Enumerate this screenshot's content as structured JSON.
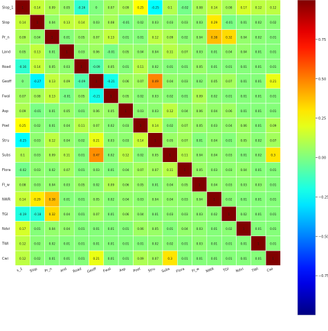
{
  "chart_data": {
    "type": "heatmap",
    "title": "",
    "xlabel": "",
    "ylabel": "",
    "row_labels": [
      "Slop_1",
      "Slop",
      "Pr_n",
      "Land",
      "Road",
      "Geoff",
      "Fwal",
      "Asp",
      "Poel",
      "Stru",
      "Subs",
      "Flora",
      "Fl_w",
      "NWR",
      "TGI",
      "Ndvi",
      "TWI",
      "Cwi"
    ],
    "col_labels": [
      "s_1",
      "Slop",
      "Pr_n",
      "and",
      "Road",
      "Geoff",
      "Fwal",
      "Asp",
      "Poel",
      "Stru",
      "Subs",
      "Flora",
      "Fl_w",
      "NWR",
      "TGI",
      "Ndvi",
      "TWI",
      "Cwi"
    ],
    "values": [
      [
        1,
        0.14,
        0.09,
        0.05,
        -0.16,
        0,
        0.07,
        0.09,
        0.25,
        -0.25,
        0.1,
        -0.02,
        0.08,
        0.14,
        0.08,
        0.17,
        0.12,
        0.12
      ],
      [
        0.14,
        1,
        0.04,
        0.13,
        0.14,
        0.03,
        0.08,
        -0.01,
        0.02,
        0.03,
        0.03,
        0.03,
        0.03,
        0.29,
        -0.01,
        0.01,
        0.02,
        0.02
      ],
      [
        0.09,
        0.04,
        1,
        0.01,
        0.05,
        0.07,
        0.13,
        0.01,
        0.01,
        0.12,
        0.09,
        0.02,
        0.04,
        0.38,
        0.32,
        0.04,
        0.02,
        0.01
      ],
      [
        0.05,
        0.13,
        0.01,
        1,
        0.03,
        0.06,
        -0.01,
        0.05,
        0.04,
        0.04,
        0.11,
        0.07,
        0.03,
        0.01,
        0.04,
        0.04,
        0.01,
        0.01
      ],
      [
        -0.16,
        0.14,
        0.05,
        0.03,
        1,
        -0.09,
        0.05,
        0.01,
        0.11,
        0.02,
        0.01,
        0.01,
        0.05,
        0.01,
        0.01,
        0.01,
        0.01,
        0.01
      ],
      [
        0,
        -0.27,
        0.13,
        0.09,
        -0.09,
        1,
        -0.21,
        0.06,
        0.07,
        0.49,
        0.04,
        0.03,
        0.02,
        0.05,
        0.07,
        0.01,
        0.01,
        0.21
      ],
      [
        0.07,
        0.08,
        0.13,
        -0.01,
        0.05,
        -0.21,
        1,
        0.05,
        0.02,
        0.03,
        0.02,
        0.01,
        0.09,
        0.02,
        0.01,
        0.01,
        0.01,
        0.01
      ],
      [
        0.09,
        -0.01,
        0.01,
        0.05,
        0.01,
        0.06,
        0.05,
        1,
        0.03,
        0.03,
        0.12,
        0.04,
        0.06,
        0.04,
        0.06,
        0.01,
        0.01,
        0.01
      ],
      [
        0.25,
        0.02,
        0.01,
        0.04,
        0.11,
        0.07,
        0.02,
        0.03,
        1,
        0.14,
        0.02,
        0.07,
        0.05,
        0.03,
        0.04,
        0.06,
        0.01,
        0.09
      ],
      [
        -0.25,
        0.03,
        0.12,
        0.04,
        0.02,
        0.21,
        0.03,
        0.03,
        0.14,
        1,
        0.05,
        0.07,
        0.01,
        0.04,
        0.01,
        0.05,
        0.02,
        0.07
      ],
      [
        0.1,
        0.03,
        0.09,
        0.11,
        0.01,
        0.47,
        0.02,
        0.12,
        0.02,
        0.05,
        1,
        0.11,
        0.04,
        0.04,
        0.03,
        0.01,
        0.02,
        0.3
      ],
      [
        -0.02,
        0.03,
        0.02,
        0.07,
        0.01,
        0.03,
        0.01,
        0.04,
        0.07,
        0.07,
        0.11,
        1,
        0.05,
        0.03,
        0.03,
        0.04,
        0.01,
        0.01
      ],
      [
        0.08,
        0.03,
        0.04,
        0.03,
        0.05,
        0.02,
        0.09,
        0.06,
        0.05,
        0.01,
        0.04,
        0.05,
        1,
        0.04,
        0.03,
        0.03,
        0.03,
        0.01
      ],
      [
        0.14,
        0.29,
        0.38,
        0.01,
        0.01,
        0.05,
        0.02,
        0.04,
        0.03,
        0.04,
        0.04,
        0.03,
        0.04,
        1,
        0.02,
        0.01,
        0.01,
        0.01
      ],
      [
        -0.19,
        -0.18,
        0.32,
        0.04,
        0.01,
        0.07,
        0.01,
        0.06,
        0.04,
        0.01,
        0.03,
        0.03,
        0.03,
        0.02,
        1,
        0.02,
        0.01,
        0.01
      ],
      [
        0.17,
        0.01,
        0.04,
        0.04,
        0.01,
        0.01,
        0.01,
        0.01,
        0.06,
        0.05,
        0.01,
        0.04,
        0.03,
        0.01,
        0.02,
        1,
        0.01,
        0.01
      ],
      [
        0.12,
        0.02,
        0.02,
        0.01,
        0.01,
        0.01,
        0.01,
        0.01,
        0.01,
        0.02,
        0.02,
        0.01,
        0.03,
        0.01,
        0.01,
        0.01,
        1,
        0.01
      ],
      [
        0.12,
        0.02,
        0.01,
        0.01,
        0.01,
        0.21,
        0.01,
        0.01,
        0.09,
        0.07,
        0.3,
        0.01,
        0.01,
        0.01,
        0.01,
        0.01,
        0.01,
        1
      ]
    ],
    "colorbar": {
      "min": -1,
      "max": 1,
      "ticks": [
        0.75,
        0.5,
        0.25,
        0,
        -0.25,
        -0.5,
        -0.75
      ],
      "colormap": "jet"
    },
    "grid": true,
    "legend": "right"
  }
}
